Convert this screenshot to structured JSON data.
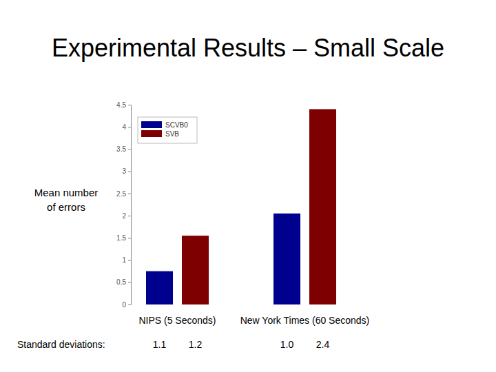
{
  "chart_data": {
    "type": "bar",
    "title": "Experimental Results – Small Scale",
    "y_label": "Mean number of errors",
    "categories": [
      "NIPS (5 Seconds)",
      "New York Times (60 Seconds)"
    ],
    "series": [
      {
        "name": "SCVB0",
        "color": "#00008f",
        "values": [
          0.75,
          2.05
        ],
        "std_dev": [
          1.1,
          1.0
        ],
        "std_dev_labels": [
          "1.1",
          "1.0"
        ]
      },
      {
        "name": "SVB",
        "color": "#7f0000",
        "values": [
          1.55,
          4.4
        ],
        "std_dev": [
          1.2,
          2.4
        ],
        "std_dev_labels": [
          "1.2",
          "2.4"
        ]
      }
    ],
    "std_dev_title": "Standard deviations:",
    "ylim": [
      0,
      4.5
    ],
    "yticks": [
      0,
      0.5,
      1,
      1.5,
      2,
      2.5,
      3,
      3.5,
      4,
      4.5
    ],
    "grid": false,
    "legend": "upper left"
  }
}
